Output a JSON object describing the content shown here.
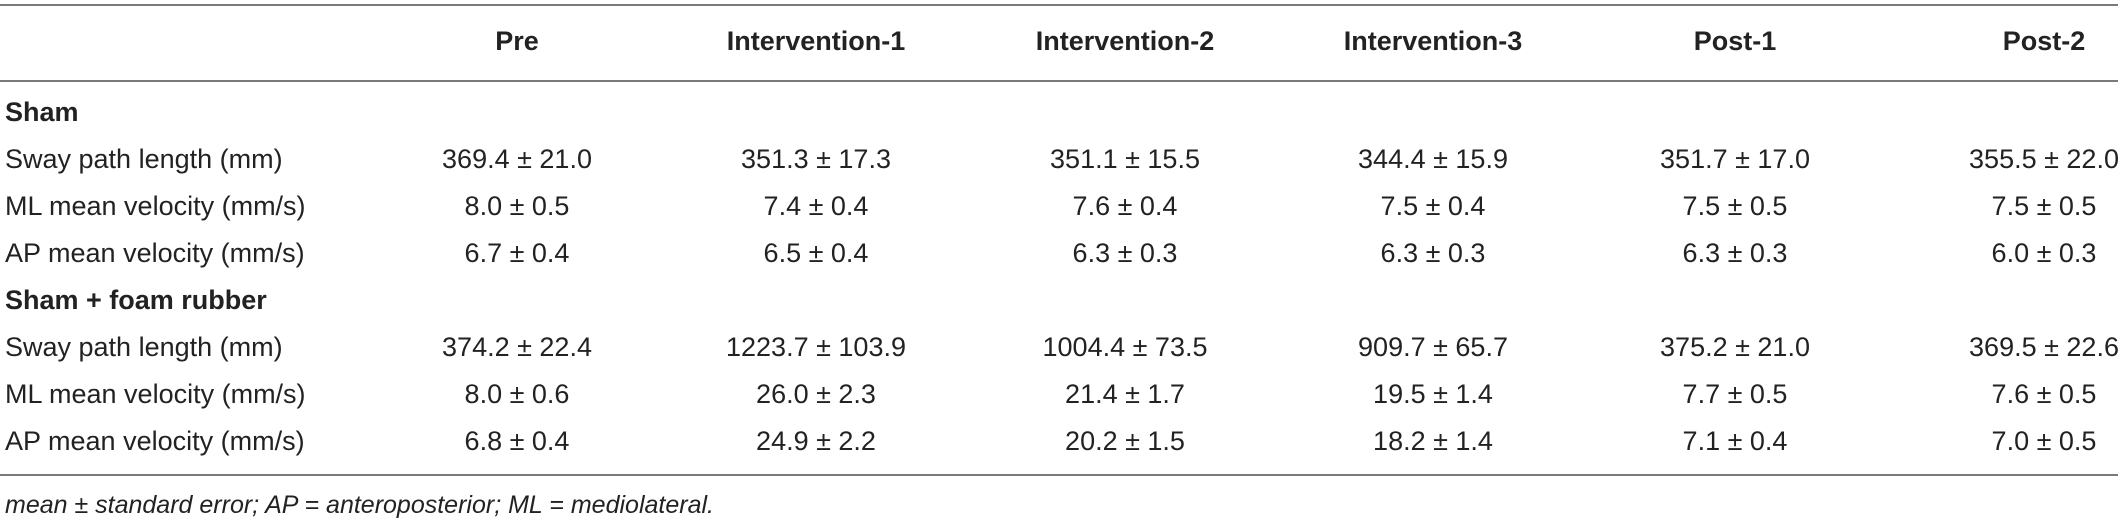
{
  "header": {
    "columns": [
      "Pre",
      "Intervention-1",
      "Intervention-2",
      "Intervention-3",
      "Post-1",
      "Post-2"
    ]
  },
  "groups": [
    {
      "title": "Sham",
      "rows": [
        {
          "label": "Sway path length (mm)",
          "values": [
            "369.4 ± 21.0",
            "351.3 ± 17.3",
            "351.1 ± 15.5",
            "344.4 ± 15.9",
            "351.7 ± 17.0",
            "355.5 ± 22.0"
          ]
        },
        {
          "label": "ML mean velocity (mm/s)",
          "values": [
            "8.0 ± 0.5",
            "7.4 ± 0.4",
            "7.6 ± 0.4",
            "7.5 ± 0.4",
            "7.5 ± 0.5",
            "7.5 ± 0.5"
          ]
        },
        {
          "label": "AP mean velocity (mm/s)",
          "values": [
            "6.7 ± 0.4",
            "6.5 ± 0.4",
            "6.3 ± 0.3",
            "6.3 ± 0.3",
            "6.3 ± 0.3",
            "6.0 ± 0.3"
          ]
        }
      ]
    },
    {
      "title": "Sham + foam rubber",
      "rows": [
        {
          "label": "Sway path length (mm)",
          "values": [
            "374.2 ± 22.4",
            "1223.7 ± 103.9",
            "1004.4 ± 73.5",
            "909.7 ± 65.7",
            "375.2 ± 21.0",
            "369.5 ± 22.6"
          ]
        },
        {
          "label": "ML mean velocity (mm/s)",
          "values": [
            "8.0 ± 0.6",
            "26.0 ± 2.3",
            "21.4 ± 1.7",
            "19.5 ± 1.4",
            "7.7 ± 0.5",
            "7.6 ± 0.5"
          ]
        },
        {
          "label": "AP mean velocity (mm/s)",
          "values": [
            "6.8 ± 0.4",
            "24.9 ± 2.2",
            "20.2 ± 1.5",
            "18.2 ± 1.4",
            "7.1 ± 0.4",
            "7.0 ± 0.5"
          ]
        }
      ]
    }
  ],
  "footnote": "mean ± standard error; AP = anteroposterior; ML = mediolateral."
}
